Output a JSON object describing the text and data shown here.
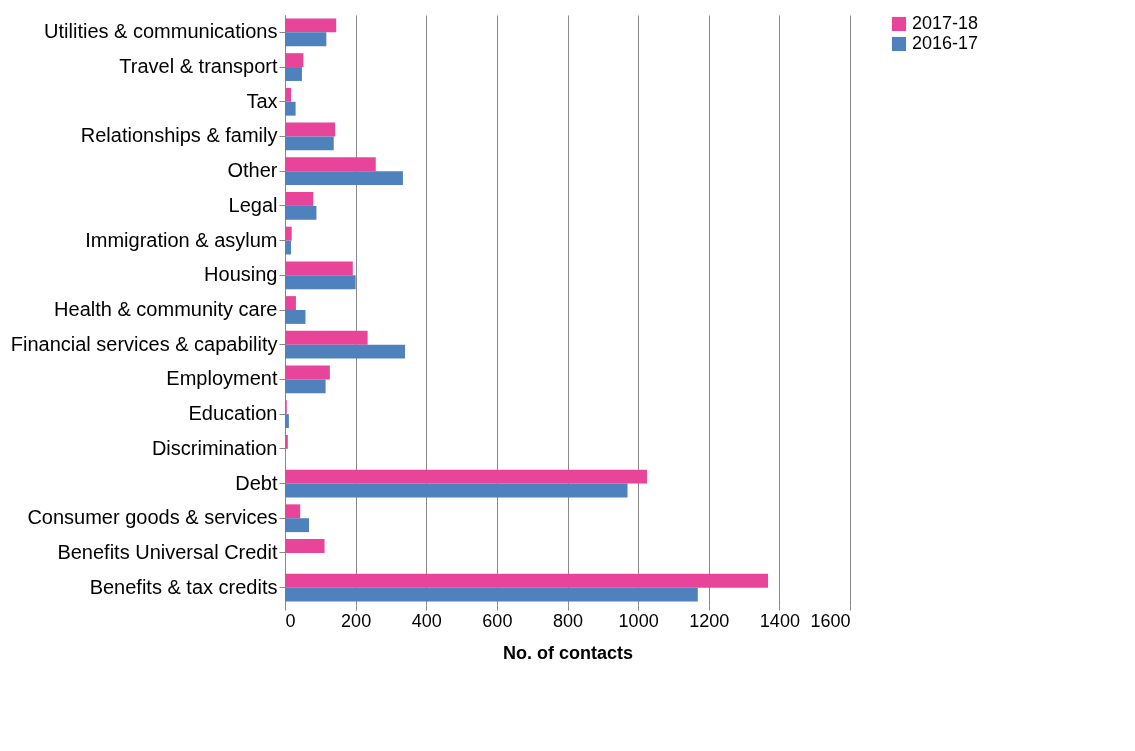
{
  "chart_data": {
    "type": "bar",
    "orientation": "horizontal",
    "xlabel": "No. of contacts",
    "categories": [
      "Utilities & communications",
      "Travel & transport",
      "Tax",
      "Relationships & family",
      "Other",
      "Legal",
      "Immigration & asylum",
      "Housing",
      "Health & community care",
      "Financial services & capability",
      "Employment",
      "Education",
      "Discrimination",
      "Debt",
      "Consumer goods & services",
      "Benefits Universal Credit",
      "Benefits & tax credits"
    ],
    "series": [
      {
        "name": "2017-18",
        "color": "#e8449a",
        "values": [
          145,
          52,
          17,
          142,
          257,
          80,
          19,
          192,
          31,
          234,
          127,
          5,
          8,
          1025,
          43,
          112,
          1368
        ]
      },
      {
        "name": "2016-17",
        "color": "#4f81bd",
        "values": [
          117,
          48,
          30,
          138,
          334,
          89,
          17,
          200,
          58,
          340,
          115,
          11,
          null,
          970,
          68,
          0,
          1169
        ]
      }
    ],
    "xlim": [
      0,
      1600
    ],
    "xticks": [
      0,
      200,
      400,
      600,
      800,
      1000,
      1200,
      1400,
      1600
    ],
    "grid": "x",
    "legend": "right"
  }
}
